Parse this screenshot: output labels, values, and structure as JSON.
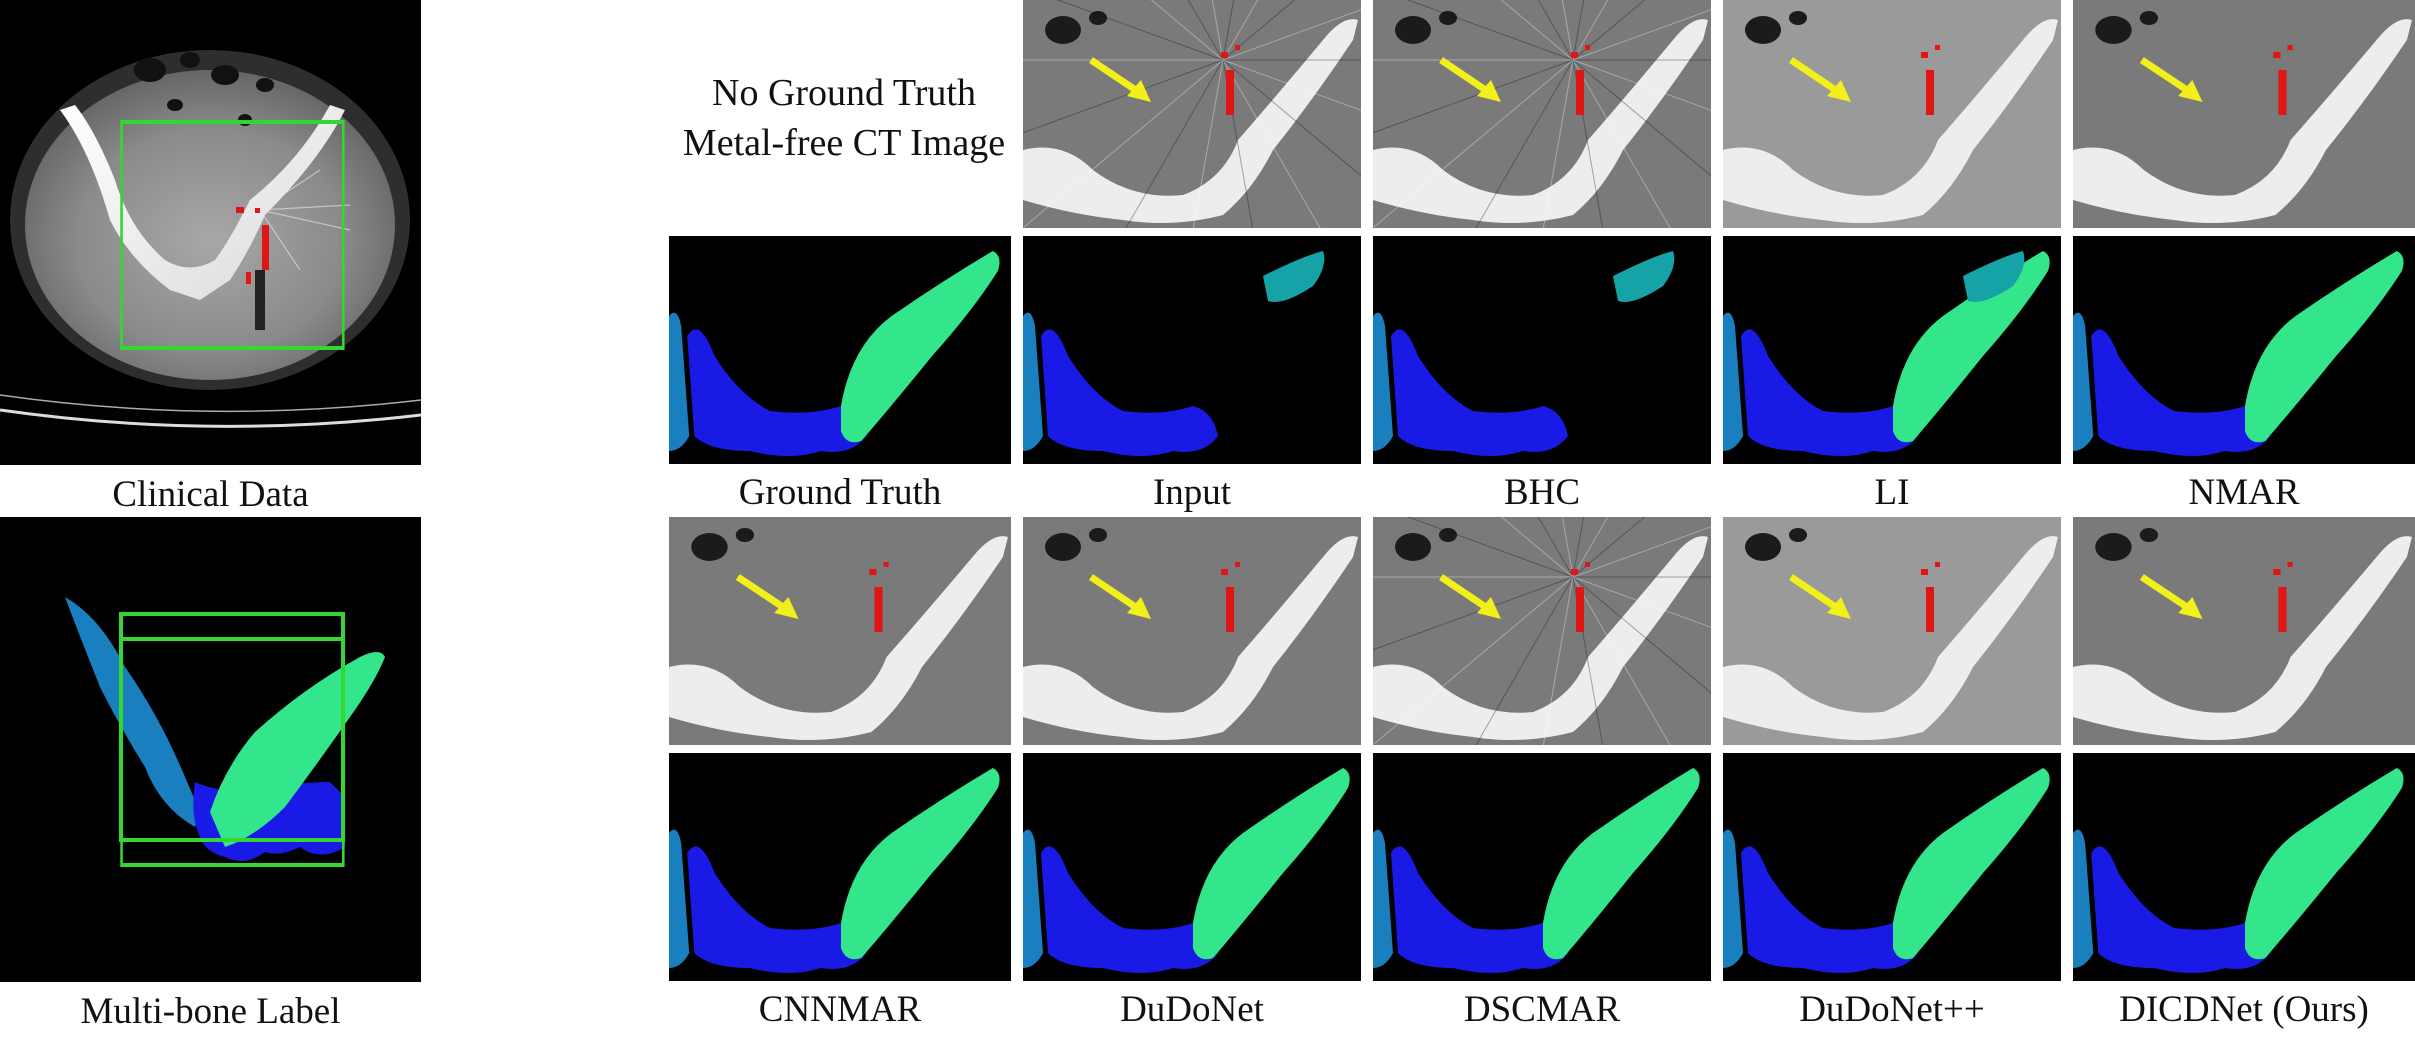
{
  "captions": {
    "clinical": "Clinical Data",
    "multibone": "Multi-bone Label",
    "ground_truth": "Ground Truth",
    "input": "Input",
    "bhc": "BHC",
    "li": "LI",
    "nmar": "NMAR",
    "cnnmar": "CNNMAR",
    "dudonet": "DuDoNet",
    "dscmar": "DSCMAR",
    "dudonetpp": "DuDoNet++",
    "dicdnet": "DICDNet (Ours)"
  },
  "note": {
    "line1": "No Ground Truth",
    "line2": "Metal-free CT Image"
  },
  "colors": {
    "roi_box": "#33d633",
    "arrow": "#f2ef1a",
    "metal": "#e01515",
    "bone_left": "#1a7fbf",
    "bone_center": "#1a1ae6",
    "bone_right": "#33e68c",
    "artifact_teal": "#15a3a8"
  }
}
